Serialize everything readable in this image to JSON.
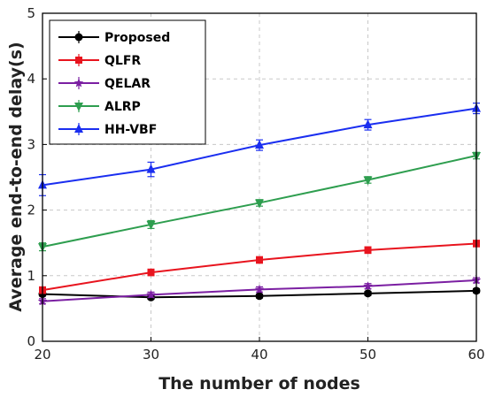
{
  "chart_data": {
    "type": "line",
    "title": "",
    "xlabel": "The number of nodes",
    "ylabel": "Average end-to-end delay(s)",
    "x": [
      20,
      30,
      40,
      50,
      60
    ],
    "xlim": [
      20,
      60
    ],
    "ylim": [
      0,
      5
    ],
    "xticks": [
      "20",
      "30",
      "40",
      "50",
      "60"
    ],
    "yticks": [
      "0",
      "1",
      "2",
      "3",
      "4",
      "5"
    ],
    "grid": true,
    "legend_position": "top-left",
    "series": [
      {
        "name": "Proposed",
        "color": "#000000",
        "marker": "circle",
        "values": [
          0.72,
          0.67,
          0.69,
          0.73,
          0.77
        ],
        "errors": [
          0.03,
          0.03,
          0.03,
          0.03,
          0.03
        ]
      },
      {
        "name": "QLFR",
        "color": "#e8141e",
        "marker": "square",
        "values": [
          0.78,
          1.05,
          1.24,
          1.39,
          1.49
        ],
        "errors": [
          0.05,
          0.05,
          0.05,
          0.05,
          0.05
        ]
      },
      {
        "name": "QELAR",
        "color": "#7b1fa2",
        "marker": "star",
        "values": [
          0.61,
          0.71,
          0.79,
          0.84,
          0.93
        ],
        "errors": [
          0.04,
          0.04,
          0.04,
          0.04,
          0.04
        ]
      },
      {
        "name": "ALRP",
        "color": "#2e9e4f",
        "marker": "triangle-down",
        "values": [
          1.44,
          1.78,
          2.11,
          2.46,
          2.83
        ],
        "errors": [
          0.06,
          0.06,
          0.05,
          0.05,
          0.05
        ]
      },
      {
        "name": "HH-VBF",
        "color": "#1a2ef0",
        "marker": "triangle-up",
        "values": [
          2.38,
          2.62,
          2.99,
          3.3,
          3.55
        ],
        "errors": [
          0.16,
          0.11,
          0.08,
          0.08,
          0.08
        ]
      }
    ]
  }
}
